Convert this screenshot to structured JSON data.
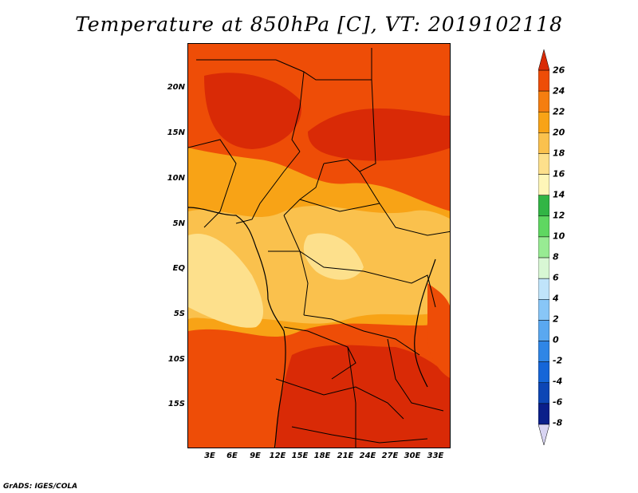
{
  "title": "Temperature at 850hPa [C], VT: 2019102118",
  "footer": "GrADS: IGES/COLA",
  "lat_labels": [
    "20N",
    "15N",
    "10N",
    "5N",
    "EQ",
    "5S",
    "10S",
    "15S"
  ],
  "lon_labels": [
    "3E",
    "6E",
    "9E",
    "12E",
    "15E",
    "18E",
    "21E",
    "24E",
    "27E",
    "30E",
    "33E"
  ],
  "colorbar": {
    "labels": [
      "26",
      "24",
      "22",
      "20",
      "18",
      "16",
      "14",
      "12",
      "10",
      "8",
      "6",
      "4",
      "2",
      "0",
      "-2",
      "-4",
      "-6",
      "-8"
    ],
    "colors": [
      "#d92a06",
      "#ee4d07",
      "#f57e10",
      "#f8a316",
      "#fac14d",
      "#fde08c",
      "#fef6b8",
      "#32b545",
      "#5fd761",
      "#98eb93",
      "#d8f7d4",
      "#c0e4fa",
      "#88c6f7",
      "#5aa8f0",
      "#2f86e6",
      "#1566d8",
      "#0d46b5",
      "#0a1f8a",
      "#d8d4f2"
    ]
  }
}
